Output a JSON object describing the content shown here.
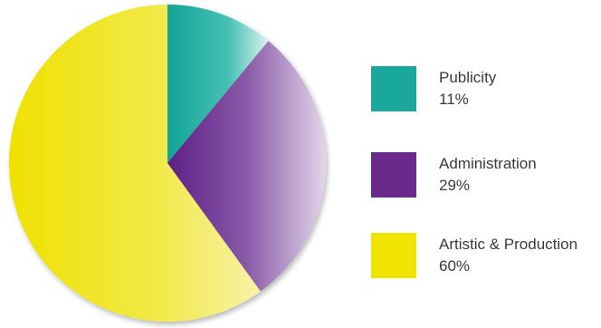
{
  "chart_data": {
    "type": "pie",
    "title": "",
    "slices": [
      {
        "label": "Publicity",
        "value": 11,
        "value_label": "11%",
        "color": "#1aa89c"
      },
      {
        "label": "Administration",
        "value": 29,
        "value_label": "29%",
        "color": "#6a2a8c"
      },
      {
        "label": "Artistic & Production",
        "value": 60,
        "value_label": "60%",
        "color": "#f0e400"
      }
    ],
    "legend_placement": "right",
    "start_angle": "top, clockwise"
  }
}
